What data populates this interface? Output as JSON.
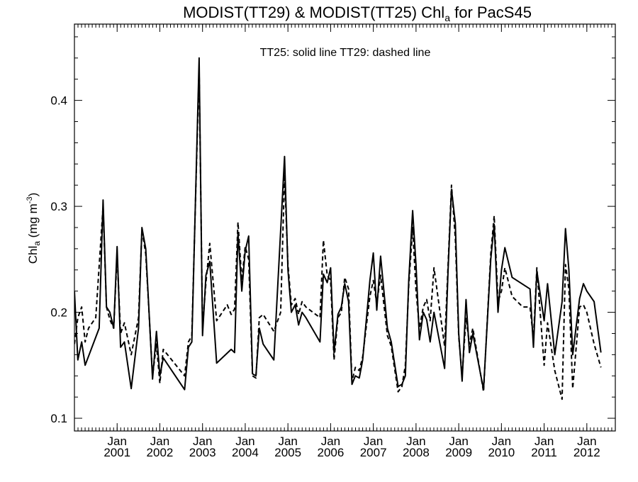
{
  "chart_data": {
    "type": "line",
    "title": {
      "prefix": "MODIST(TT29) & MODIST(TT25)  Chl",
      "subscript": "a",
      "suffix": " for PacS45"
    },
    "ylabel": {
      "prefix": "Chl",
      "subscript": "a",
      "suffix": " (mg m",
      "superscript": "-3",
      "end": ")"
    },
    "annotation": "TT25: solid line   TT29: dashed line",
    "xlim": [
      2000.0,
      2012.667
    ],
    "ylim": [
      0.088,
      0.472
    ],
    "y_ticks": [
      0.1,
      0.2,
      0.3,
      0.4
    ],
    "y_tick_labels": [
      "0.1",
      "0.2",
      "0.3",
      "0.4"
    ],
    "x_ticks": [
      {
        "value": 2001.0,
        "month": "Jan",
        "year": "2001"
      },
      {
        "value": 2002.0,
        "month": "Jan",
        "year": "2002"
      },
      {
        "value": 2003.0,
        "month": "Jan",
        "year": "2003"
      },
      {
        "value": 2004.0,
        "month": "Jan",
        "year": "2004"
      },
      {
        "value": 2005.0,
        "month": "Jan",
        "year": "2005"
      },
      {
        "value": 2006.0,
        "month": "Jan",
        "year": "2006"
      },
      {
        "value": 2007.0,
        "month": "Jan",
        "year": "2007"
      },
      {
        "value": 2008.0,
        "month": "Jan",
        "year": "2008"
      },
      {
        "value": 2009.0,
        "month": "Jan",
        "year": "2009"
      },
      {
        "value": 2010.0,
        "month": "Jan",
        "year": "2010"
      },
      {
        "value": 2011.0,
        "month": "Jan",
        "year": "2011"
      },
      {
        "value": 2012.0,
        "month": "Jan",
        "year": "2012"
      }
    ],
    "grid": false,
    "series": [
      {
        "name": "TT25",
        "style": "solid",
        "color": "#000000",
        "points": [
          [
            2000.0,
            0.22
          ],
          [
            2000.08,
            0.155
          ],
          [
            2000.17,
            0.172
          ],
          [
            2000.25,
            0.15
          ],
          [
            2000.58,
            0.185
          ],
          [
            2000.67,
            0.306
          ],
          [
            2000.75,
            0.205
          ],
          [
            2000.83,
            0.2
          ],
          [
            2000.92,
            0.185
          ],
          [
            2001.0,
            0.262
          ],
          [
            2001.08,
            0.167
          ],
          [
            2001.17,
            0.172
          ],
          [
            2001.33,
            0.128
          ],
          [
            2001.5,
            0.185
          ],
          [
            2001.58,
            0.28
          ],
          [
            2001.67,
            0.26
          ],
          [
            2001.83,
            0.137
          ],
          [
            2001.92,
            0.182
          ],
          [
            2002.0,
            0.14
          ],
          [
            2002.08,
            0.157
          ],
          [
            2002.58,
            0.127
          ],
          [
            2002.67,
            0.167
          ],
          [
            2002.75,
            0.172
          ],
          [
            2002.92,
            0.44
          ],
          [
            2003.0,
            0.178
          ],
          [
            2003.08,
            0.235
          ],
          [
            2003.17,
            0.248
          ],
          [
            2003.33,
            0.152
          ],
          [
            2003.67,
            0.165
          ],
          [
            2003.75,
            0.162
          ],
          [
            2003.83,
            0.275
          ],
          [
            2003.92,
            0.22
          ],
          [
            2004.0,
            0.258
          ],
          [
            2004.08,
            0.272
          ],
          [
            2004.17,
            0.142
          ],
          [
            2004.25,
            0.14
          ],
          [
            2004.33,
            0.185
          ],
          [
            2004.42,
            0.17
          ],
          [
            2004.67,
            0.155
          ],
          [
            2004.92,
            0.347
          ],
          [
            2005.0,
            0.24
          ],
          [
            2005.08,
            0.2
          ],
          [
            2005.17,
            0.207
          ],
          [
            2005.25,
            0.188
          ],
          [
            2005.33,
            0.2
          ],
          [
            2005.42,
            0.195
          ],
          [
            2005.75,
            0.172
          ],
          [
            2005.83,
            0.236
          ],
          [
            2005.92,
            0.228
          ],
          [
            2006.0,
            0.242
          ],
          [
            2006.08,
            0.162
          ],
          [
            2006.17,
            0.198
          ],
          [
            2006.25,
            0.205
          ],
          [
            2006.33,
            0.227
          ],
          [
            2006.42,
            0.21
          ],
          [
            2006.5,
            0.132
          ],
          [
            2006.58,
            0.14
          ],
          [
            2006.67,
            0.138
          ],
          [
            2006.75,
            0.155
          ],
          [
            2006.92,
            0.23
          ],
          [
            2007.0,
            0.256
          ],
          [
            2007.08,
            0.202
          ],
          [
            2007.17,
            0.253
          ],
          [
            2007.33,
            0.185
          ],
          [
            2007.42,
            0.172
          ],
          [
            2007.58,
            0.13
          ],
          [
            2007.67,
            0.132
          ],
          [
            2007.75,
            0.14
          ],
          [
            2007.83,
            0.23
          ],
          [
            2007.92,
            0.296
          ],
          [
            2008.0,
            0.244
          ],
          [
            2008.08,
            0.174
          ],
          [
            2008.17,
            0.2
          ],
          [
            2008.25,
            0.193
          ],
          [
            2008.33,
            0.172
          ],
          [
            2008.42,
            0.2
          ],
          [
            2008.67,
            0.147
          ],
          [
            2008.75,
            0.24
          ],
          [
            2008.83,
            0.316
          ],
          [
            2008.92,
            0.284
          ],
          [
            2009.0,
            0.18
          ],
          [
            2009.08,
            0.135
          ],
          [
            2009.17,
            0.212
          ],
          [
            2009.25,
            0.162
          ],
          [
            2009.33,
            0.18
          ],
          [
            2009.58,
            0.127
          ],
          [
            2009.75,
            0.25
          ],
          [
            2009.83,
            0.283
          ],
          [
            2009.92,
            0.2
          ],
          [
            2010.0,
            0.24
          ],
          [
            2010.08,
            0.261
          ],
          [
            2010.25,
            0.233
          ],
          [
            2010.67,
            0.222
          ],
          [
            2010.75,
            0.167
          ],
          [
            2010.83,
            0.239
          ],
          [
            2011.0,
            0.192
          ],
          [
            2011.08,
            0.227
          ],
          [
            2011.25,
            0.16
          ],
          [
            2011.42,
            0.21
          ],
          [
            2011.5,
            0.279
          ],
          [
            2011.58,
            0.24
          ],
          [
            2011.67,
            0.16
          ],
          [
            2011.83,
            0.213
          ],
          [
            2011.92,
            0.227
          ],
          [
            2012.0,
            0.22
          ],
          [
            2012.17,
            0.21
          ],
          [
            2012.33,
            0.162
          ]
        ]
      },
      {
        "name": "TT29",
        "style": "dashed",
        "color": "#000000",
        "points": [
          [
            2000.0,
            0.17
          ],
          [
            2000.08,
            0.195
          ],
          [
            2000.17,
            0.205
          ],
          [
            2000.25,
            0.172
          ],
          [
            2000.33,
            0.185
          ],
          [
            2000.5,
            0.195
          ],
          [
            2000.67,
            0.3
          ],
          [
            2000.75,
            0.205
          ],
          [
            2000.83,
            0.193
          ],
          [
            2000.92,
            0.185
          ],
          [
            2001.0,
            0.255
          ],
          [
            2001.08,
            0.18
          ],
          [
            2001.17,
            0.19
          ],
          [
            2001.33,
            0.16
          ],
          [
            2001.5,
            0.195
          ],
          [
            2001.58,
            0.278
          ],
          [
            2001.67,
            0.255
          ],
          [
            2001.83,
            0.14
          ],
          [
            2001.92,
            0.17
          ],
          [
            2002.0,
            0.133
          ],
          [
            2002.08,
            0.165
          ],
          [
            2002.58,
            0.14
          ],
          [
            2002.67,
            0.172
          ],
          [
            2002.75,
            0.178
          ],
          [
            2002.92,
            0.43
          ],
          [
            2003.0,
            0.185
          ],
          [
            2003.08,
            0.228
          ],
          [
            2003.17,
            0.265
          ],
          [
            2003.33,
            0.192
          ],
          [
            2003.58,
            0.207
          ],
          [
            2003.67,
            0.198
          ],
          [
            2003.75,
            0.203
          ],
          [
            2003.83,
            0.285
          ],
          [
            2003.92,
            0.23
          ],
          [
            2004.0,
            0.262
          ],
          [
            2004.08,
            0.25
          ],
          [
            2004.17,
            0.14
          ],
          [
            2004.25,
            0.138
          ],
          [
            2004.33,
            0.195
          ],
          [
            2004.42,
            0.198
          ],
          [
            2004.67,
            0.182
          ],
          [
            2004.83,
            0.2
          ],
          [
            2004.92,
            0.33
          ],
          [
            2005.0,
            0.245
          ],
          [
            2005.08,
            0.207
          ],
          [
            2005.17,
            0.213
          ],
          [
            2005.25,
            0.198
          ],
          [
            2005.33,
            0.21
          ],
          [
            2005.42,
            0.205
          ],
          [
            2005.75,
            0.195
          ],
          [
            2005.83,
            0.268
          ],
          [
            2005.92,
            0.235
          ],
          [
            2006.0,
            0.23
          ],
          [
            2006.08,
            0.155
          ],
          [
            2006.17,
            0.195
          ],
          [
            2006.25,
            0.2
          ],
          [
            2006.33,
            0.233
          ],
          [
            2006.42,
            0.222
          ],
          [
            2006.5,
            0.135
          ],
          [
            2006.58,
            0.148
          ],
          [
            2006.67,
            0.145
          ],
          [
            2006.75,
            0.158
          ],
          [
            2006.92,
            0.215
          ],
          [
            2007.0,
            0.23
          ],
          [
            2007.08,
            0.208
          ],
          [
            2007.17,
            0.235
          ],
          [
            2007.33,
            0.178
          ],
          [
            2007.42,
            0.168
          ],
          [
            2007.58,
            0.125
          ],
          [
            2007.67,
            0.13
          ],
          [
            2007.75,
            0.15
          ],
          [
            2007.83,
            0.225
          ],
          [
            2007.92,
            0.28
          ],
          [
            2008.0,
            0.22
          ],
          [
            2008.08,
            0.185
          ],
          [
            2008.17,
            0.205
          ],
          [
            2008.25,
            0.212
          ],
          [
            2008.33,
            0.192
          ],
          [
            2008.42,
            0.242
          ],
          [
            2008.67,
            0.168
          ],
          [
            2008.75,
            0.245
          ],
          [
            2008.83,
            0.32
          ],
          [
            2008.92,
            0.27
          ],
          [
            2009.0,
            0.177
          ],
          [
            2009.08,
            0.14
          ],
          [
            2009.17,
            0.195
          ],
          [
            2009.25,
            0.17
          ],
          [
            2009.33,
            0.185
          ],
          [
            2009.58,
            0.125
          ],
          [
            2009.75,
            0.255
          ],
          [
            2009.83,
            0.291
          ],
          [
            2009.92,
            0.21
          ],
          [
            2010.0,
            0.22
          ],
          [
            2010.08,
            0.242
          ],
          [
            2010.25,
            0.215
          ],
          [
            2010.5,
            0.205
          ],
          [
            2010.67,
            0.205
          ],
          [
            2010.75,
            0.175
          ],
          [
            2010.83,
            0.242
          ],
          [
            2011.0,
            0.15
          ],
          [
            2011.08,
            0.19
          ],
          [
            2011.25,
            0.145
          ],
          [
            2011.42,
            0.118
          ],
          [
            2011.5,
            0.245
          ],
          [
            2011.58,
            0.222
          ],
          [
            2011.67,
            0.128
          ],
          [
            2011.83,
            0.205
          ],
          [
            2011.92,
            0.207
          ],
          [
            2012.0,
            0.2
          ],
          [
            2012.17,
            0.17
          ],
          [
            2012.33,
            0.148
          ]
        ]
      }
    ]
  }
}
